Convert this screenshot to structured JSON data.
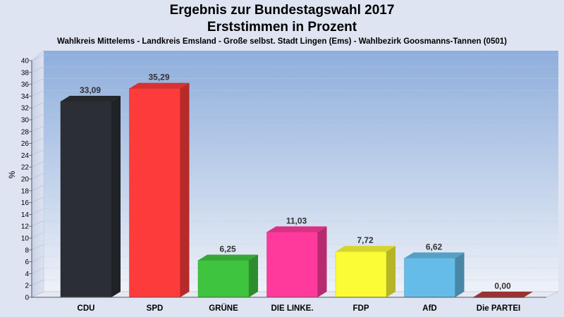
{
  "chart_data": {
    "type": "bar",
    "title": "Ergebnis zur Bundestagswahl 2017",
    "title2": "Erststimmen in Prozent",
    "subtitle": "Wahlkreis Mittelems - Landkreis Emsland - Große selbst. Stadt Lingen (Ems) - Wahlbezirk Goosmanns-Tannen (0501)",
    "ylabel": "%",
    "ylim": [
      0,
      40
    ],
    "yticks": [
      "0",
      "2",
      "4",
      "6",
      "8",
      "10",
      "12",
      "14",
      "16",
      "18",
      "20",
      "22",
      "24",
      "26",
      "28",
      "30",
      "32",
      "34",
      "36",
      "38",
      "40"
    ],
    "categories": [
      "CDU",
      "SPD",
      "GRÜNE",
      "DIE LINKE.",
      "FDP",
      "AfD",
      "Die PARTEI"
    ],
    "values": [
      33.09,
      35.29,
      6.25,
      11.03,
      7.72,
      6.62,
      0.0
    ],
    "value_labels": [
      "33,09",
      "35,29",
      "6,25",
      "11,03",
      "7,72",
      "6,62",
      "0,00"
    ],
    "colors": [
      "#2b2f35",
      "#fe3b3b",
      "#3fc43f",
      "#ff3a9c",
      "#fbfb36",
      "#66bce8",
      "#b83a3a"
    ],
    "grid": true
  }
}
